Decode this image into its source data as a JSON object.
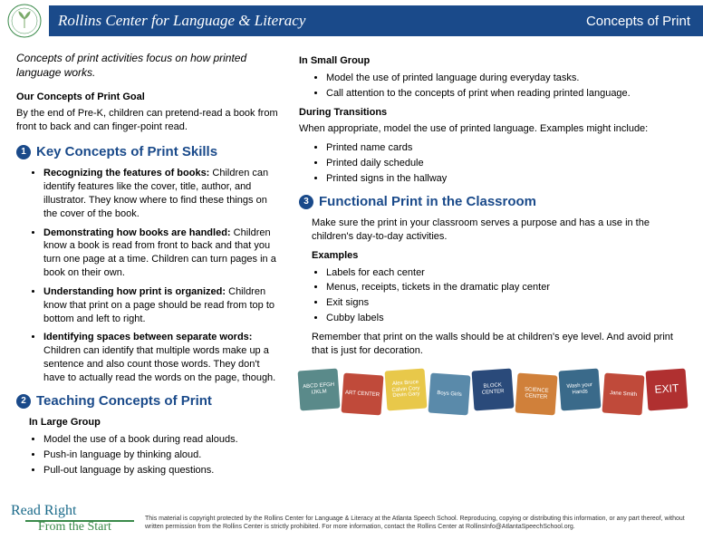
{
  "header": {
    "org": "Rollins Center for Language & Literacy",
    "topic": "Concepts of Print",
    "bar_color": "#1a4a8a"
  },
  "intro": "Concepts of print activities focus on how printed language works.",
  "goal": {
    "title": "Our Concepts of Print Goal",
    "text": "By the end of Pre-K, children can pretend-read a book from front to back and can finger-point read."
  },
  "section1": {
    "num": "1",
    "title": "Key Concepts of Print Skills",
    "items": [
      {
        "b": "Recognizing the features of books:",
        "t": " Children can identify features like the cover, title, author, and illustrator. They know where to find these things on the cover of the book."
      },
      {
        "b": "Demonstrating how books are handled:",
        "t": " Children know a book is read from front to back and that you turn one page at a time. Children can turn pages in a book on their own."
      },
      {
        "b": "Understanding how print is organized:",
        "t": " Children know that print on a page should be read from top to bottom and left to right."
      },
      {
        "b": "Identifying spaces between separate words:",
        "t": " Children can identify that multiple words make up a sentence and also count those words. They don't have to actually read the words on the page, though."
      }
    ]
  },
  "section2": {
    "num": "2",
    "title": "Teaching Concepts of Print",
    "large_group_label": "In Large Group",
    "large_group_items": [
      "Model the use of a book during read alouds.",
      "Push-in language by thinking aloud.",
      "Pull-out language by asking questions."
    ],
    "small_group_label": "In Small Group",
    "small_group_items": [
      "Model the use of printed language during everyday tasks.",
      "Call attention to the concepts of print when reading printed language."
    ],
    "transitions_label": "During Transitions",
    "transitions_intro": "When appropriate, model the use of printed language. Examples might include:",
    "transitions_items": [
      "Printed name cards",
      "Printed daily schedule",
      "Printed signs in the hallway"
    ]
  },
  "section3": {
    "num": "3",
    "title": "Functional Print in the Classroom",
    "intro": "Make sure the print in your classroom serves a purpose and has a use in the children's day-to-day activities.",
    "examples_label": "Examples",
    "examples_items": [
      "Labels for each center",
      "Menus, receipts, tickets in the dramatic play center",
      "Exit signs",
      "Cubby labels"
    ],
    "note": "Remember that print on the walls should be at children's eye level. And avoid print that is just for decoration."
  },
  "blocks": [
    {
      "text": "ABCD EFGH IJKLM",
      "color": "#5a8a8a"
    },
    {
      "text": "ART CENTER",
      "color": "#c04a3a"
    },
    {
      "text": "Alex Bruce Calvin Cory Devin Gary",
      "color": "#e8c84a"
    },
    {
      "text": "Boys  Girls",
      "color": "#5a8aaa"
    },
    {
      "text": "BLOCK CENTER",
      "color": "#2a4a7a"
    },
    {
      "text": "SCIENCE CENTER",
      "color": "#d0803a"
    },
    {
      "text": "Wash your Hands",
      "color": "#3a6a8a"
    },
    {
      "text": "Jane Smith",
      "color": "#c04a3a"
    },
    {
      "text": "EXIT",
      "color": "#b03030"
    }
  ],
  "footer": {
    "rr": "Read Right",
    "fts": "From the Start",
    "copyright": "This material is copyright protected by the Rollins Center for Language & Literacy at the Atlanta Speech School. Reproducing, copying or distributing this information, or any part thereof, without written permission from the Rollins Center is strictly prohibited. For more information, contact the Rollins Center at RollinsInfo@AtlantaSpeechSchool.org."
  }
}
